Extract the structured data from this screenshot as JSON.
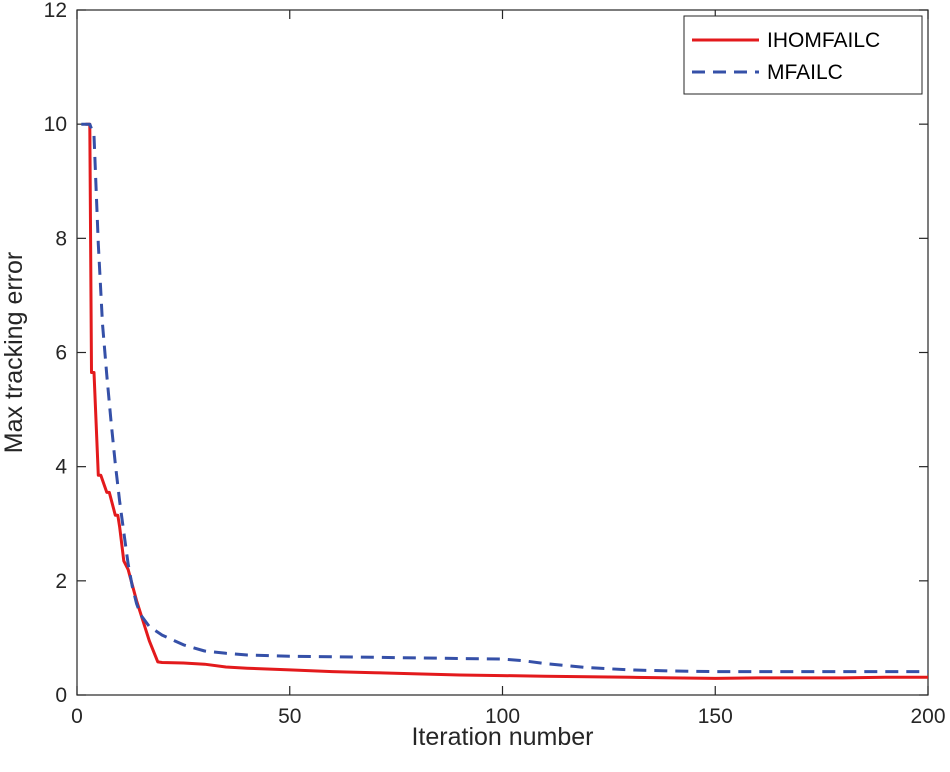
{
  "chart_data": {
    "type": "line",
    "title": "",
    "xlabel": "Iteration number",
    "ylabel": "Max tracking error",
    "xlim": [
      0,
      200
    ],
    "ylim": [
      0,
      12
    ],
    "xticks": [
      0,
      50,
      100,
      150,
      200
    ],
    "yticks": [
      0,
      2,
      4,
      6,
      8,
      10,
      12
    ],
    "xtick_labels": [
      "0",
      "50",
      "100",
      "150",
      "200"
    ],
    "ytick_labels": [
      "0",
      "2",
      "4",
      "6",
      "8",
      "10",
      "12"
    ],
    "grid": false,
    "legend_position": "top-right",
    "series": [
      {
        "name": "IHOMFAILC",
        "color": "#e31a1c",
        "style": "solid",
        "x": [
          2,
          3,
          3.4,
          4,
          5,
          5.6,
          7,
          7.6,
          9,
          9.6,
          10,
          11,
          12,
          14,
          17,
          19,
          20,
          25,
          30,
          35,
          40,
          50,
          60,
          70,
          80,
          90,
          100,
          110,
          120,
          130,
          140,
          150,
          160,
          170,
          180,
          190,
          200
        ],
        "y": [
          10,
          10,
          5.65,
          5.65,
          3.85,
          3.85,
          3.55,
          3.55,
          3.15,
          3.15,
          2.95,
          2.35,
          2.2,
          1.65,
          0.95,
          0.58,
          0.57,
          0.56,
          0.54,
          0.49,
          0.47,
          0.44,
          0.41,
          0.39,
          0.37,
          0.35,
          0.34,
          0.33,
          0.32,
          0.31,
          0.3,
          0.29,
          0.3,
          0.3,
          0.3,
          0.31,
          0.31
        ]
      },
      {
        "name": "MFAILC",
        "color": "#3550a8",
        "style": "dashed",
        "x": [
          1,
          2,
          3,
          4,
          5,
          6,
          7,
          8,
          9,
          10,
          11,
          12,
          13,
          14,
          15,
          17,
          20,
          25,
          30,
          35,
          40,
          50,
          60,
          70,
          80,
          90,
          100,
          105,
          110,
          120,
          130,
          140,
          150,
          160,
          170,
          180,
          190,
          200
        ],
        "y": [
          10,
          10,
          10,
          9.8,
          7.9,
          6.5,
          5.6,
          4.8,
          4.05,
          3.4,
          2.85,
          2.3,
          1.9,
          1.6,
          1.4,
          1.2,
          1.05,
          0.88,
          0.77,
          0.73,
          0.7,
          0.68,
          0.67,
          0.66,
          0.65,
          0.64,
          0.63,
          0.6,
          0.55,
          0.48,
          0.44,
          0.42,
          0.41,
          0.41,
          0.41,
          0.41,
          0.41,
          0.41
        ]
      }
    ]
  }
}
